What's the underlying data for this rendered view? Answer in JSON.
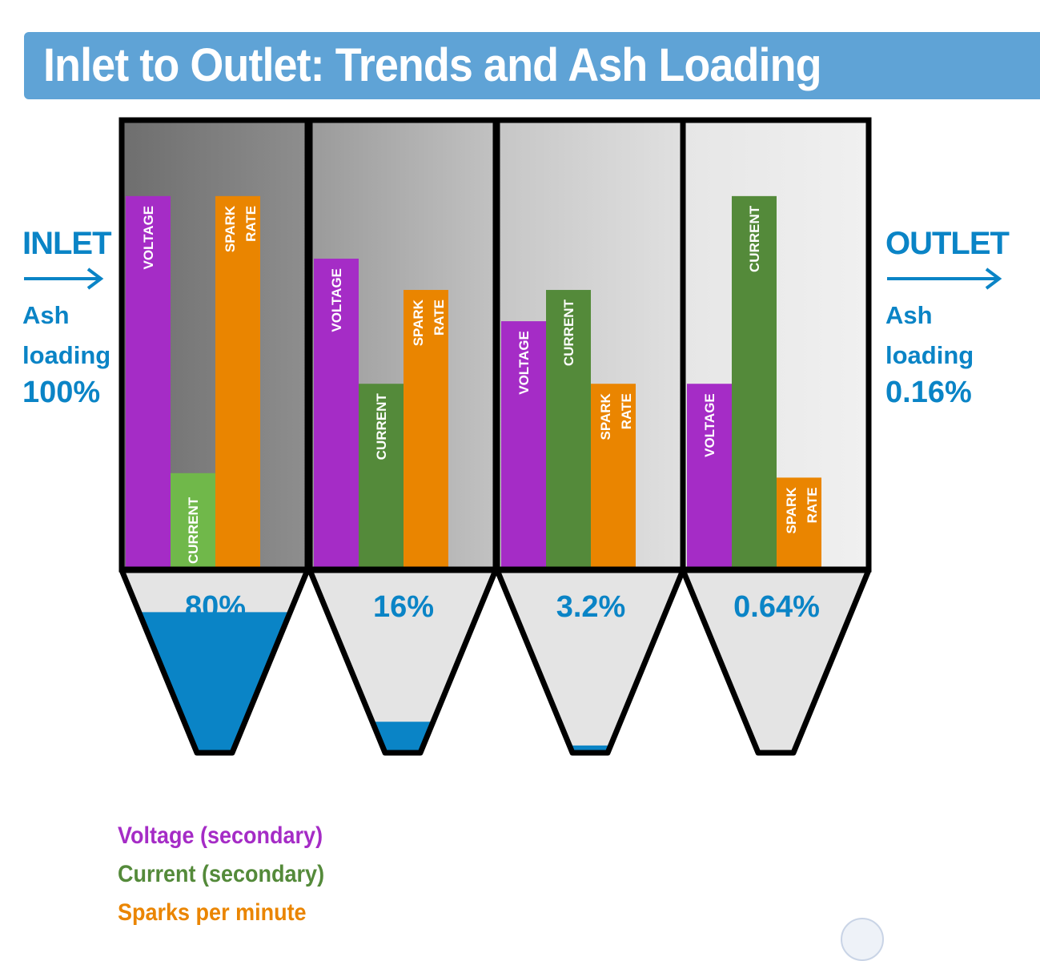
{
  "title": "Inlet to Outlet: Trends and Ash Loading",
  "inlet": {
    "label": "INLET",
    "ash_label_1": "Ash",
    "ash_label_2": "loading",
    "ash_value": "100%"
  },
  "outlet": {
    "label": "OUTLET",
    "ash_label_1": "Ash",
    "ash_label_2": "loading",
    "ash_value": "0.16%"
  },
  "colors": {
    "voltage": "#a52cc6",
    "current": "#548a3a",
    "current_first": "#70b84a",
    "spark": "#ea8500",
    "ash": "#0a84c6",
    "header": "#5fa3d6"
  },
  "bar_labels": {
    "voltage": "VOLTAGE",
    "current": "CURRENT",
    "spark_1": "SPARK",
    "spark_2": "RATE"
  },
  "fields": [
    {
      "voltage": 0.83,
      "current": 0.21,
      "spark": 0.83,
      "hopper_label": "80%",
      "hopper_fill": 0.77,
      "bg": [
        "#6e6e6e",
        "#8e8e8e"
      ]
    },
    {
      "voltage": 0.69,
      "current": 0.41,
      "spark": 0.62,
      "hopper_label": "16%",
      "hopper_fill": 0.17,
      "bg": [
        "#9a9a9a",
        "#c2c2c2"
      ]
    },
    {
      "voltage": 0.55,
      "current": 0.62,
      "spark": 0.41,
      "hopper_label": "3.2%",
      "hopper_fill": 0.04,
      "bg": [
        "#c6c6c6",
        "#e0e0e0"
      ]
    },
    {
      "voltage": 0.41,
      "current": 0.83,
      "spark": 0.2,
      "hopper_label": "0.64%",
      "hopper_fill": 0,
      "bg": [
        "#e6e6e6",
        "#f0f0f0"
      ]
    }
  ],
  "legend": [
    {
      "text": "Voltage (secondary)",
      "color": "#a52cc6"
    },
    {
      "text": "Current (secondary)",
      "color": "#548a3a"
    },
    {
      "text": "Sparks per minute",
      "color": "#ea8500"
    }
  ]
}
